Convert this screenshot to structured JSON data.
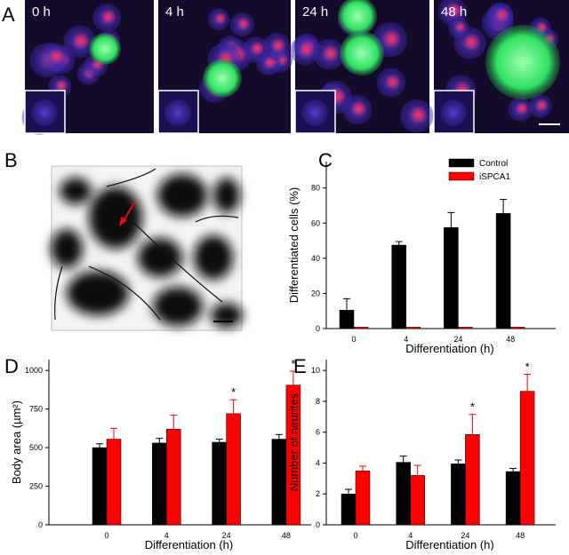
{
  "figure": {
    "panel_labels": [
      "A",
      "B",
      "C",
      "D",
      "E"
    ],
    "image_labels": [
      "0 h",
      "4 h",
      "24 h",
      "48 h"
    ]
  },
  "chart_data": [
    {
      "type": "bar",
      "ylabel": "Differentiated cells (%)",
      "xlabel": "Differentiation (h)",
      "categories": [
        "0",
        "4",
        "24",
        "48"
      ],
      "ylim": [
        0,
        95
      ],
      "yticks": [
        0,
        20,
        40,
        60,
        80
      ],
      "legend": "top-right",
      "series": [
        {
          "name": "Control",
          "color": "#000000",
          "values": [
            10.5,
            47.5,
            57.5,
            65.5
          ],
          "errors": [
            6.5,
            2,
            8.5,
            8
          ]
        },
        {
          "name": "iSPCA1",
          "color": "#ff0000",
          "values": [
            0.8,
            0.8,
            0.8,
            0.8
          ],
          "errors": [
            0,
            0,
            0,
            0
          ]
        }
      ]
    },
    {
      "type": "bar",
      "ylabel": "Body area (µm²)",
      "xlabel": "Differentiation (h)",
      "categories": [
        "0",
        "4",
        "24",
        "48"
      ],
      "ylim": [
        0,
        1070
      ],
      "yticks": [
        0,
        250,
        500,
        750,
        1000
      ],
      "series": [
        {
          "name": "Control",
          "color": "#000000",
          "values": [
            500,
            530,
            535,
            555
          ],
          "errors": [
            25,
            30,
            20,
            30
          ]
        },
        {
          "name": "iSPCA1",
          "color": "#ff0000",
          "values": [
            555,
            620,
            720,
            905
          ],
          "errors": [
            70,
            90,
            90,
            90
          ]
        }
      ],
      "annotations": [
        {
          "text": "*",
          "x": "24"
        },
        {
          "text": "*",
          "x": "48"
        }
      ]
    },
    {
      "type": "bar",
      "ylabel": "Number of neurites",
      "xlabel": "Differentiation (h)",
      "categories": [
        "0",
        "4",
        "24",
        "48"
      ],
      "ylim": [
        0,
        10.7
      ],
      "yticks": [
        0,
        2,
        4,
        6,
        8,
        10
      ],
      "series": [
        {
          "name": "Control",
          "color": "#000000",
          "values": [
            2.0,
            4.05,
            3.95,
            3.45
          ],
          "errors": [
            0.3,
            0.4,
            0.25,
            0.2
          ]
        },
        {
          "name": "iSPCA1",
          "color": "#ff0000",
          "values": [
            3.5,
            3.2,
            5.85,
            8.65
          ],
          "errors": [
            0.3,
            0.65,
            1.3,
            1.1
          ]
        }
      ],
      "annotations": [
        {
          "text": "*",
          "x": "24"
        },
        {
          "text": "*",
          "x": "48"
        }
      ]
    }
  ]
}
